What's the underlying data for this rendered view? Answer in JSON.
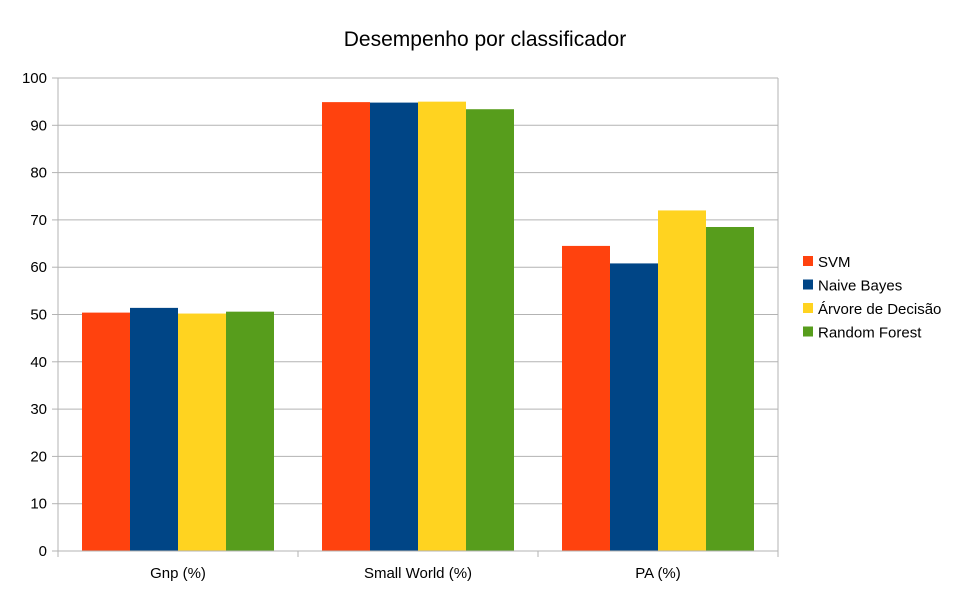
{
  "chart_data": {
    "type": "bar",
    "title": "Desempenho por classificador",
    "xlabel": "",
    "ylabel": "",
    "categories": [
      "Gnp (%)",
      "Small World (%)",
      "PA (%)"
    ],
    "ylim": [
      0,
      100
    ],
    "yticks": [
      0,
      10,
      20,
      30,
      40,
      50,
      60,
      70,
      80,
      90,
      100
    ],
    "grid": true,
    "legend_position": "right",
    "series": [
      {
        "name": "SVM",
        "color": "#ff420e",
        "values": [
          50.4,
          94.9,
          64.5
        ]
      },
      {
        "name": "Naive Bayes",
        "color": "#004586",
        "values": [
          51.4,
          94.8,
          60.8
        ]
      },
      {
        "name": "Árvore de Decisão",
        "color": "#ffd320",
        "values": [
          50.2,
          95.0,
          72.0
        ]
      },
      {
        "name": "Random Forest",
        "color": "#579d1c",
        "values": [
          50.6,
          93.4,
          68.5
        ]
      }
    ]
  }
}
